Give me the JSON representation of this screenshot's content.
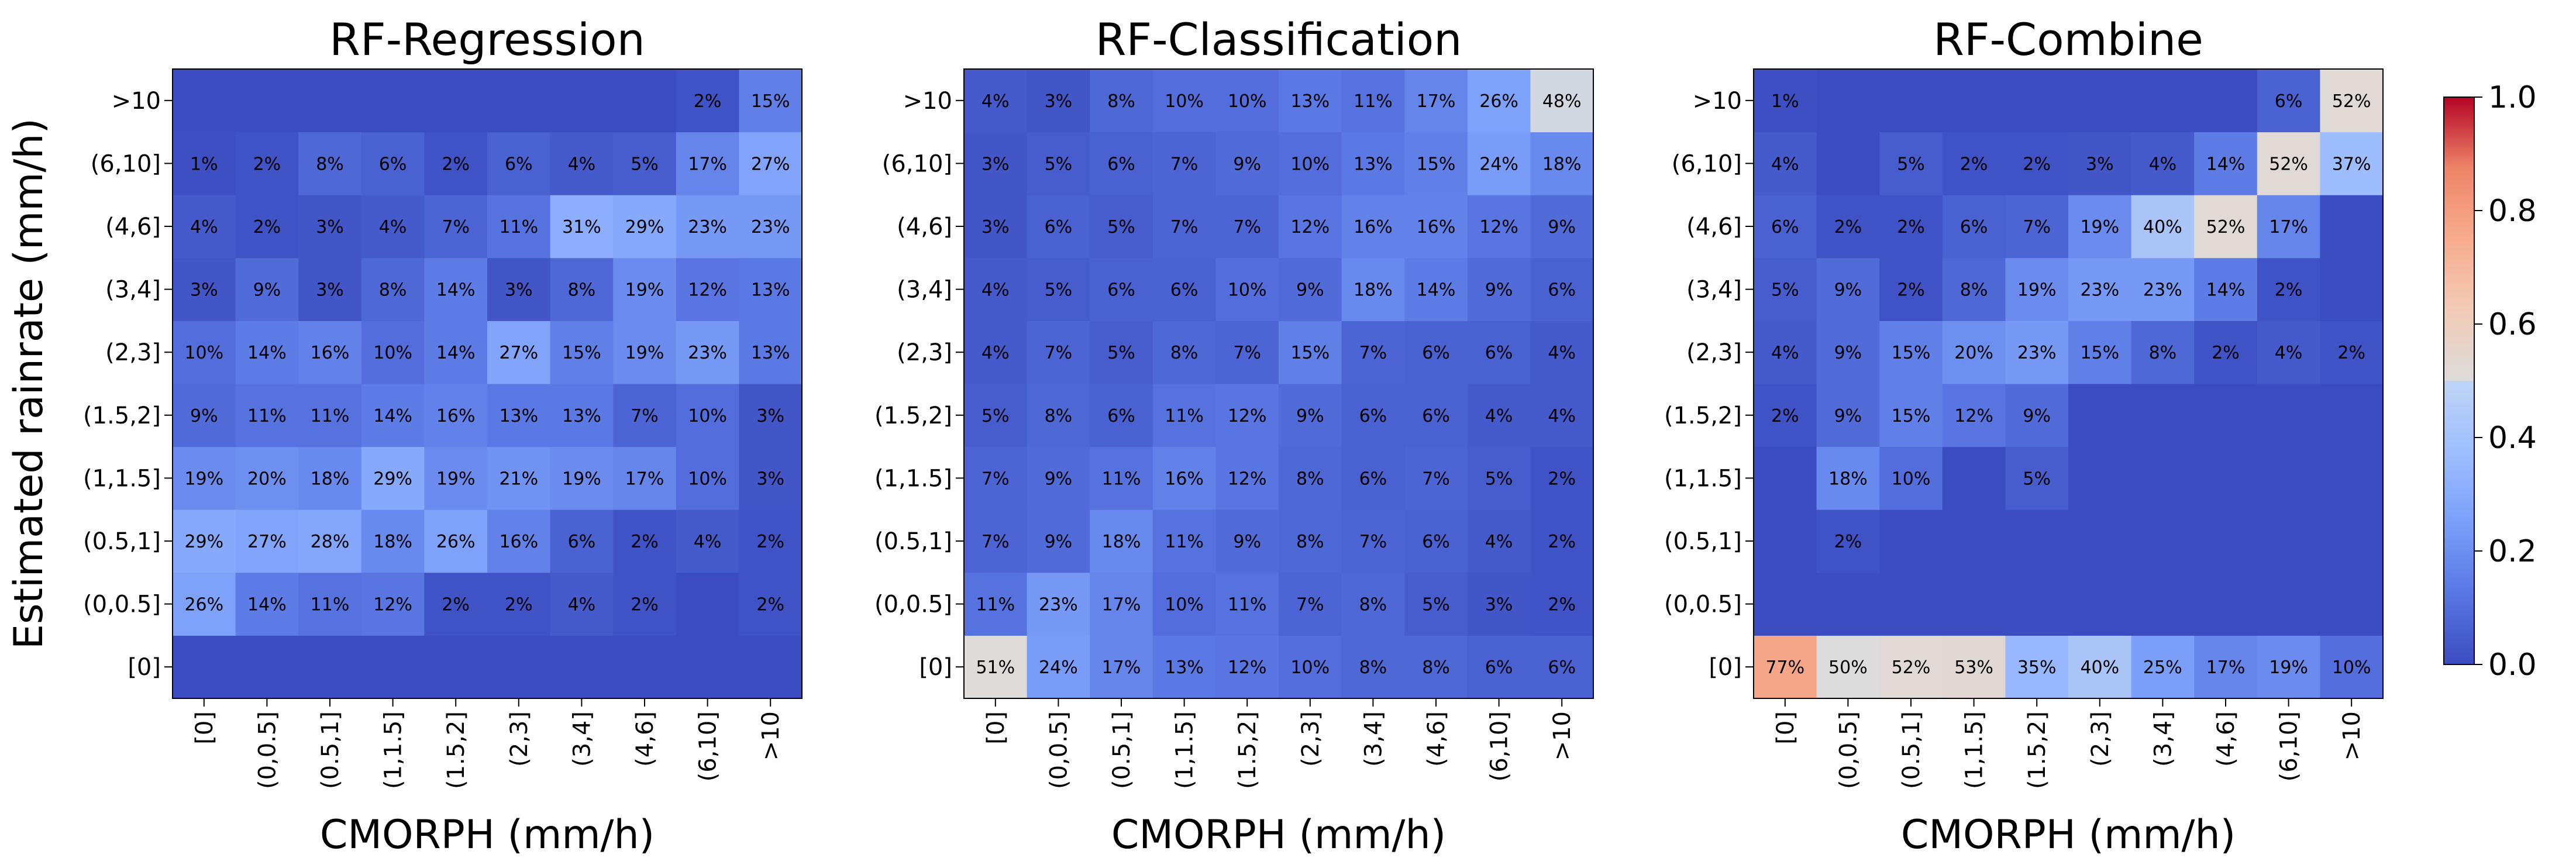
{
  "chart_data": [
    {
      "type": "heatmap",
      "title": "RF-Regression",
      "xlabel": "CMORPH (mm/h)",
      "ylabel": "Estimated rainrate (mm/h)",
      "x_categories": [
        "[0]",
        "(0,0.5]",
        "(0.5,1]",
        "(1,1.5]",
        "(1.5,2]",
        "(2,3]",
        "(3,4]",
        "(4,6]",
        "(6,10]",
        ">10"
      ],
      "y_categories": [
        "[0]",
        "(0,0.5]",
        "(0.5,1]",
        "(1,1.5]",
        "(1.5,2]",
        "(2,3]",
        "(3,4]",
        "(4,6]",
        "(6,10]",
        ">10"
      ],
      "values": [
        [
          0,
          0,
          0,
          0,
          0,
          0,
          0,
          0,
          0,
          0
        ],
        [
          0.26,
          0.14,
          0.11,
          0.12,
          0.02,
          0.02,
          0.04,
          0.02,
          null,
          0.02
        ],
        [
          0.29,
          0.27,
          0.28,
          0.18,
          0.26,
          0.16,
          0.06,
          0.02,
          0.04,
          0.02
        ],
        [
          0.19,
          0.2,
          0.18,
          0.29,
          0.19,
          0.21,
          0.19,
          0.17,
          0.1,
          0.03
        ],
        [
          0.09,
          0.11,
          0.11,
          0.14,
          0.16,
          0.13,
          0.13,
          0.07,
          0.1,
          0.03
        ],
        [
          0.1,
          0.14,
          0.16,
          0.1,
          0.14,
          0.27,
          0.15,
          0.19,
          0.23,
          0.13
        ],
        [
          0.03,
          0.09,
          0.03,
          0.08,
          0.14,
          0.03,
          0.08,
          0.19,
          0.12,
          0.13
        ],
        [
          0.04,
          0.02,
          0.03,
          0.04,
          0.07,
          0.11,
          0.31,
          0.29,
          0.23,
          0.23
        ],
        [
          0.01,
          0.02,
          0.08,
          0.06,
          0.02,
          0.06,
          0.04,
          0.05,
          0.17,
          0.27
        ],
        [
          null,
          null,
          null,
          null,
          null,
          null,
          null,
          null,
          0.02,
          0.15
        ]
      ],
      "labels": [
        [
          "",
          "",
          "",
          "",
          "",
          "",
          "",
          "",
          "",
          ""
        ],
        [
          "26%",
          "14%",
          "11%",
          "12%",
          "2%",
          "2%",
          "4%",
          "2%",
          "",
          "2%"
        ],
        [
          "29%",
          "27%",
          "28%",
          "18%",
          "26%",
          "16%",
          "6%",
          "2%",
          "4%",
          "2%"
        ],
        [
          "19%",
          "20%",
          "18%",
          "29%",
          "19%",
          "21%",
          "19%",
          "17%",
          "10%",
          "3%"
        ],
        [
          "9%",
          "11%",
          "11%",
          "14%",
          "16%",
          "13%",
          "13%",
          "7%",
          "10%",
          "3%"
        ],
        [
          "10%",
          "14%",
          "16%",
          "10%",
          "14%",
          "27%",
          "15%",
          "19%",
          "23%",
          "13%"
        ],
        [
          "3%",
          "9%",
          "3%",
          "8%",
          "14%",
          "3%",
          "8%",
          "19%",
          "12%",
          "13%"
        ],
        [
          "4%",
          "2%",
          "3%",
          "4%",
          "7%",
          "11%",
          "31%",
          "29%",
          "23%",
          "23%"
        ],
        [
          "1%",
          "2%",
          "8%",
          "6%",
          "2%",
          "6%",
          "4%",
          "5%",
          "17%",
          "27%"
        ],
        [
          "",
          "",
          "",
          "",
          "",
          "",
          "",
          "",
          "2%",
          "15%"
        ]
      ]
    },
    {
      "type": "heatmap",
      "title": "RF-Classification",
      "xlabel": "CMORPH (mm/h)",
      "ylabel": "",
      "x_categories": [
        "[0]",
        "(0,0.5]",
        "(0.5,1]",
        "(1,1.5]",
        "(1.5,2]",
        "(2,3]",
        "(3,4]",
        "(4,6]",
        "(6,10]",
        ">10"
      ],
      "y_categories": [
        "[0]",
        "(0,0.5]",
        "(0.5,1]",
        "(1,1.5]",
        "(1.5,2]",
        "(2,3]",
        "(3,4]",
        "(4,6]",
        "(6,10]",
        ">10"
      ],
      "values": [
        [
          0.51,
          0.24,
          0.17,
          0.13,
          0.12,
          0.1,
          0.08,
          0.08,
          0.06,
          0.06
        ],
        [
          0.11,
          0.23,
          0.17,
          0.1,
          0.11,
          0.07,
          0.08,
          0.05,
          0.03,
          0.02
        ],
        [
          0.07,
          0.09,
          0.18,
          0.11,
          0.09,
          0.08,
          0.07,
          0.06,
          0.04,
          0.02
        ],
        [
          0.07,
          0.09,
          0.11,
          0.16,
          0.12,
          0.08,
          0.06,
          0.07,
          0.05,
          0.02
        ],
        [
          0.05,
          0.08,
          0.06,
          0.11,
          0.12,
          0.09,
          0.06,
          0.06,
          0.04,
          0.04
        ],
        [
          0.04,
          0.07,
          0.05,
          0.08,
          0.07,
          0.15,
          0.07,
          0.06,
          0.06,
          0.04
        ],
        [
          0.04,
          0.05,
          0.06,
          0.06,
          0.1,
          0.09,
          0.18,
          0.14,
          0.09,
          0.06
        ],
        [
          0.03,
          0.06,
          0.05,
          0.07,
          0.07,
          0.12,
          0.16,
          0.16,
          0.12,
          0.09
        ],
        [
          0.03,
          0.05,
          0.06,
          0.07,
          0.09,
          0.1,
          0.13,
          0.15,
          0.24,
          0.18
        ],
        [
          0.04,
          0.03,
          0.08,
          0.1,
          0.1,
          0.13,
          0.11,
          0.17,
          0.26,
          0.48
        ]
      ],
      "labels": [
        [
          "51%",
          "24%",
          "17%",
          "13%",
          "12%",
          "10%",
          "8%",
          "8%",
          "6%",
          "6%"
        ],
        [
          "11%",
          "23%",
          "17%",
          "10%",
          "11%",
          "7%",
          "8%",
          "5%",
          "3%",
          "2%"
        ],
        [
          "7%",
          "9%",
          "18%",
          "11%",
          "9%",
          "8%",
          "7%",
          "6%",
          "4%",
          "2%"
        ],
        [
          "7%",
          "9%",
          "11%",
          "16%",
          "12%",
          "8%",
          "6%",
          "7%",
          "5%",
          "2%"
        ],
        [
          "5%",
          "8%",
          "6%",
          "11%",
          "12%",
          "9%",
          "6%",
          "6%",
          "4%",
          "4%"
        ],
        [
          "4%",
          "7%",
          "5%",
          "8%",
          "7%",
          "15%",
          "7%",
          "6%",
          "6%",
          "4%"
        ],
        [
          "4%",
          "5%",
          "6%",
          "6%",
          "10%",
          "9%",
          "18%",
          "14%",
          "9%",
          "6%"
        ],
        [
          "3%",
          "6%",
          "5%",
          "7%",
          "7%",
          "12%",
          "16%",
          "16%",
          "12%",
          "9%"
        ],
        [
          "3%",
          "5%",
          "6%",
          "7%",
          "9%",
          "10%",
          "13%",
          "15%",
          "24%",
          "18%"
        ],
        [
          "4%",
          "3%",
          "8%",
          "10%",
          "10%",
          "13%",
          "11%",
          "17%",
          "26%",
          "48%"
        ]
      ]
    },
    {
      "type": "heatmap",
      "title": "RF-Combine",
      "xlabel": "CMORPH (mm/h)",
      "ylabel": "",
      "x_categories": [
        "[0]",
        "(0,0.5]",
        "(0.5,1]",
        "(1,1.5]",
        "(1.5,2]",
        "(2,3]",
        "(3,4]",
        "(4,6]",
        "(6,10]",
        ">10"
      ],
      "y_categories": [
        "[0]",
        "(0,0.5]",
        "(0.5,1]",
        "(1,1.5]",
        "(1.5,2]",
        "(2,3]",
        "(3,4]",
        "(4,6]",
        "(6,10]",
        ">10"
      ],
      "values": [
        [
          0.77,
          0.5,
          0.52,
          0.53,
          0.35,
          0.4,
          0.25,
          0.17,
          0.19,
          0.1
        ],
        [
          null,
          null,
          null,
          null,
          null,
          null,
          null,
          null,
          null,
          null
        ],
        [
          null,
          0.02,
          null,
          null,
          null,
          null,
          null,
          null,
          null,
          null
        ],
        [
          null,
          0.18,
          0.1,
          null,
          0.05,
          null,
          null,
          null,
          null,
          null
        ],
        [
          0.02,
          0.09,
          0.15,
          0.12,
          0.09,
          null,
          null,
          null,
          null,
          null
        ],
        [
          0.04,
          0.09,
          0.15,
          0.2,
          0.23,
          0.15,
          0.08,
          0.02,
          0.04,
          0.02
        ],
        [
          0.05,
          0.09,
          0.02,
          0.08,
          0.19,
          0.23,
          0.23,
          0.14,
          0.02,
          null
        ],
        [
          0.06,
          0.02,
          0.02,
          0.06,
          0.07,
          0.19,
          0.4,
          0.52,
          0.17,
          null
        ],
        [
          0.04,
          null,
          0.05,
          0.02,
          0.02,
          0.03,
          0.04,
          0.14,
          0.52,
          0.37
        ],
        [
          0.01,
          null,
          null,
          null,
          null,
          null,
          null,
          null,
          0.06,
          0.52
        ]
      ],
      "labels": [
        [
          "77%",
          "50%",
          "52%",
          "53%",
          "35%",
          "40%",
          "25%",
          "17%",
          "19%",
          "10%"
        ],
        [
          "",
          "",
          "",
          "",
          "",
          "",
          "",
          "",
          "",
          ""
        ],
        [
          "",
          "2%",
          "",
          "",
          "",
          "",
          "",
          "",
          "",
          ""
        ],
        [
          "",
          "18%",
          "10%",
          "",
          "5%",
          "",
          "",
          "",
          "",
          ""
        ],
        [
          "2%",
          "9%",
          "15%",
          "12%",
          "9%",
          "",
          "",
          "",
          "",
          ""
        ],
        [
          "4%",
          "9%",
          "15%",
          "20%",
          "23%",
          "15%",
          "8%",
          "2%",
          "4%",
          "2%"
        ],
        [
          "5%",
          "9%",
          "2%",
          "8%",
          "19%",
          "23%",
          "23%",
          "14%",
          "2%",
          ""
        ],
        [
          "6%",
          "2%",
          "2%",
          "6%",
          "7%",
          "19%",
          "40%",
          "52%",
          "17%",
          ""
        ],
        [
          "4%",
          "",
          "5%",
          "2%",
          "2%",
          "3%",
          "4%",
          "14%",
          "52%",
          "37%"
        ],
        [
          "1%",
          "",
          "",
          "",
          "",
          "",
          "",
          "",
          "6%",
          "52%"
        ]
      ]
    }
  ],
  "colorbar": {
    "colormap": "coolwarm",
    "range": [
      0,
      1
    ],
    "ticks": [
      0,
      0.2,
      0.4,
      0.6,
      0.8,
      1.0
    ],
    "tick_labels": [
      "0.0",
      "0.2",
      "0.4",
      "0.6",
      "0.8",
      "1.0"
    ]
  }
}
